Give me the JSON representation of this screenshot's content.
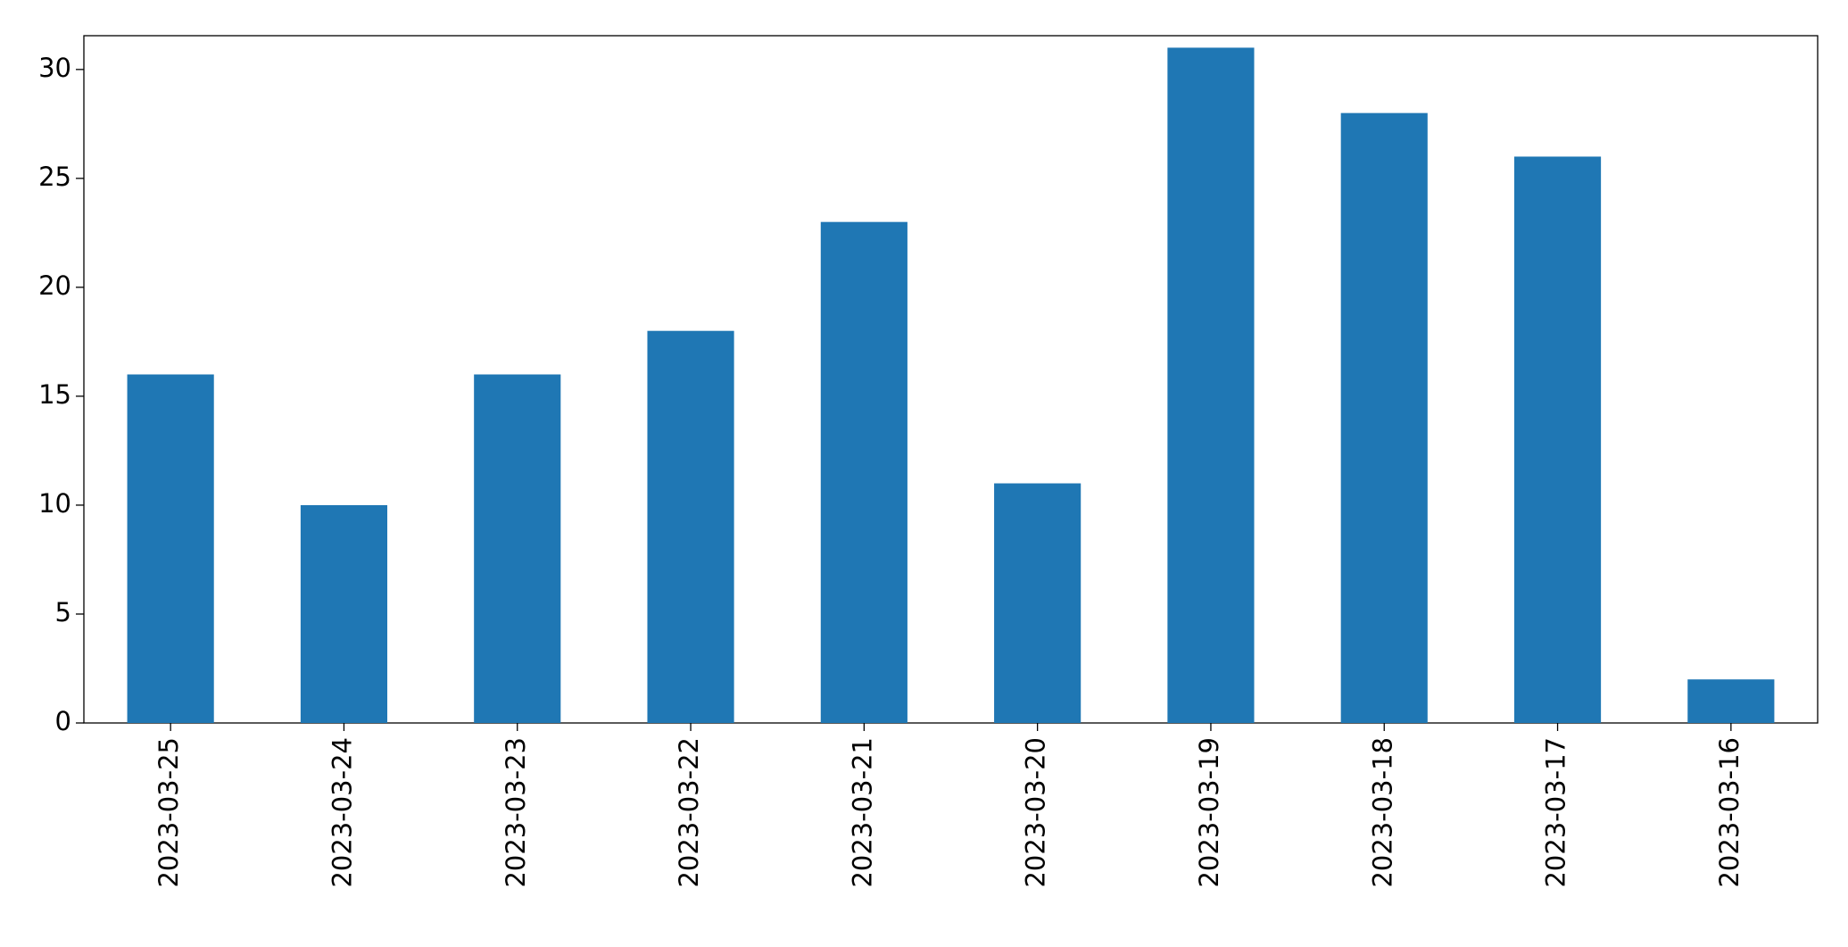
{
  "chart_data": {
    "type": "bar",
    "categories": [
      "2023-03-25",
      "2023-03-24",
      "2023-03-23",
      "2023-03-22",
      "2023-03-21",
      "2023-03-20",
      "2023-03-19",
      "2023-03-18",
      "2023-03-17",
      "2023-03-16"
    ],
    "values": [
      16,
      10,
      16,
      18,
      23,
      11,
      31,
      28,
      26,
      2
    ],
    "color": "#1f77b4",
    "ylim": [
      0,
      31.55
    ],
    "yticks": [
      0,
      5,
      10,
      15,
      20,
      25,
      30
    ],
    "grid": false
  }
}
